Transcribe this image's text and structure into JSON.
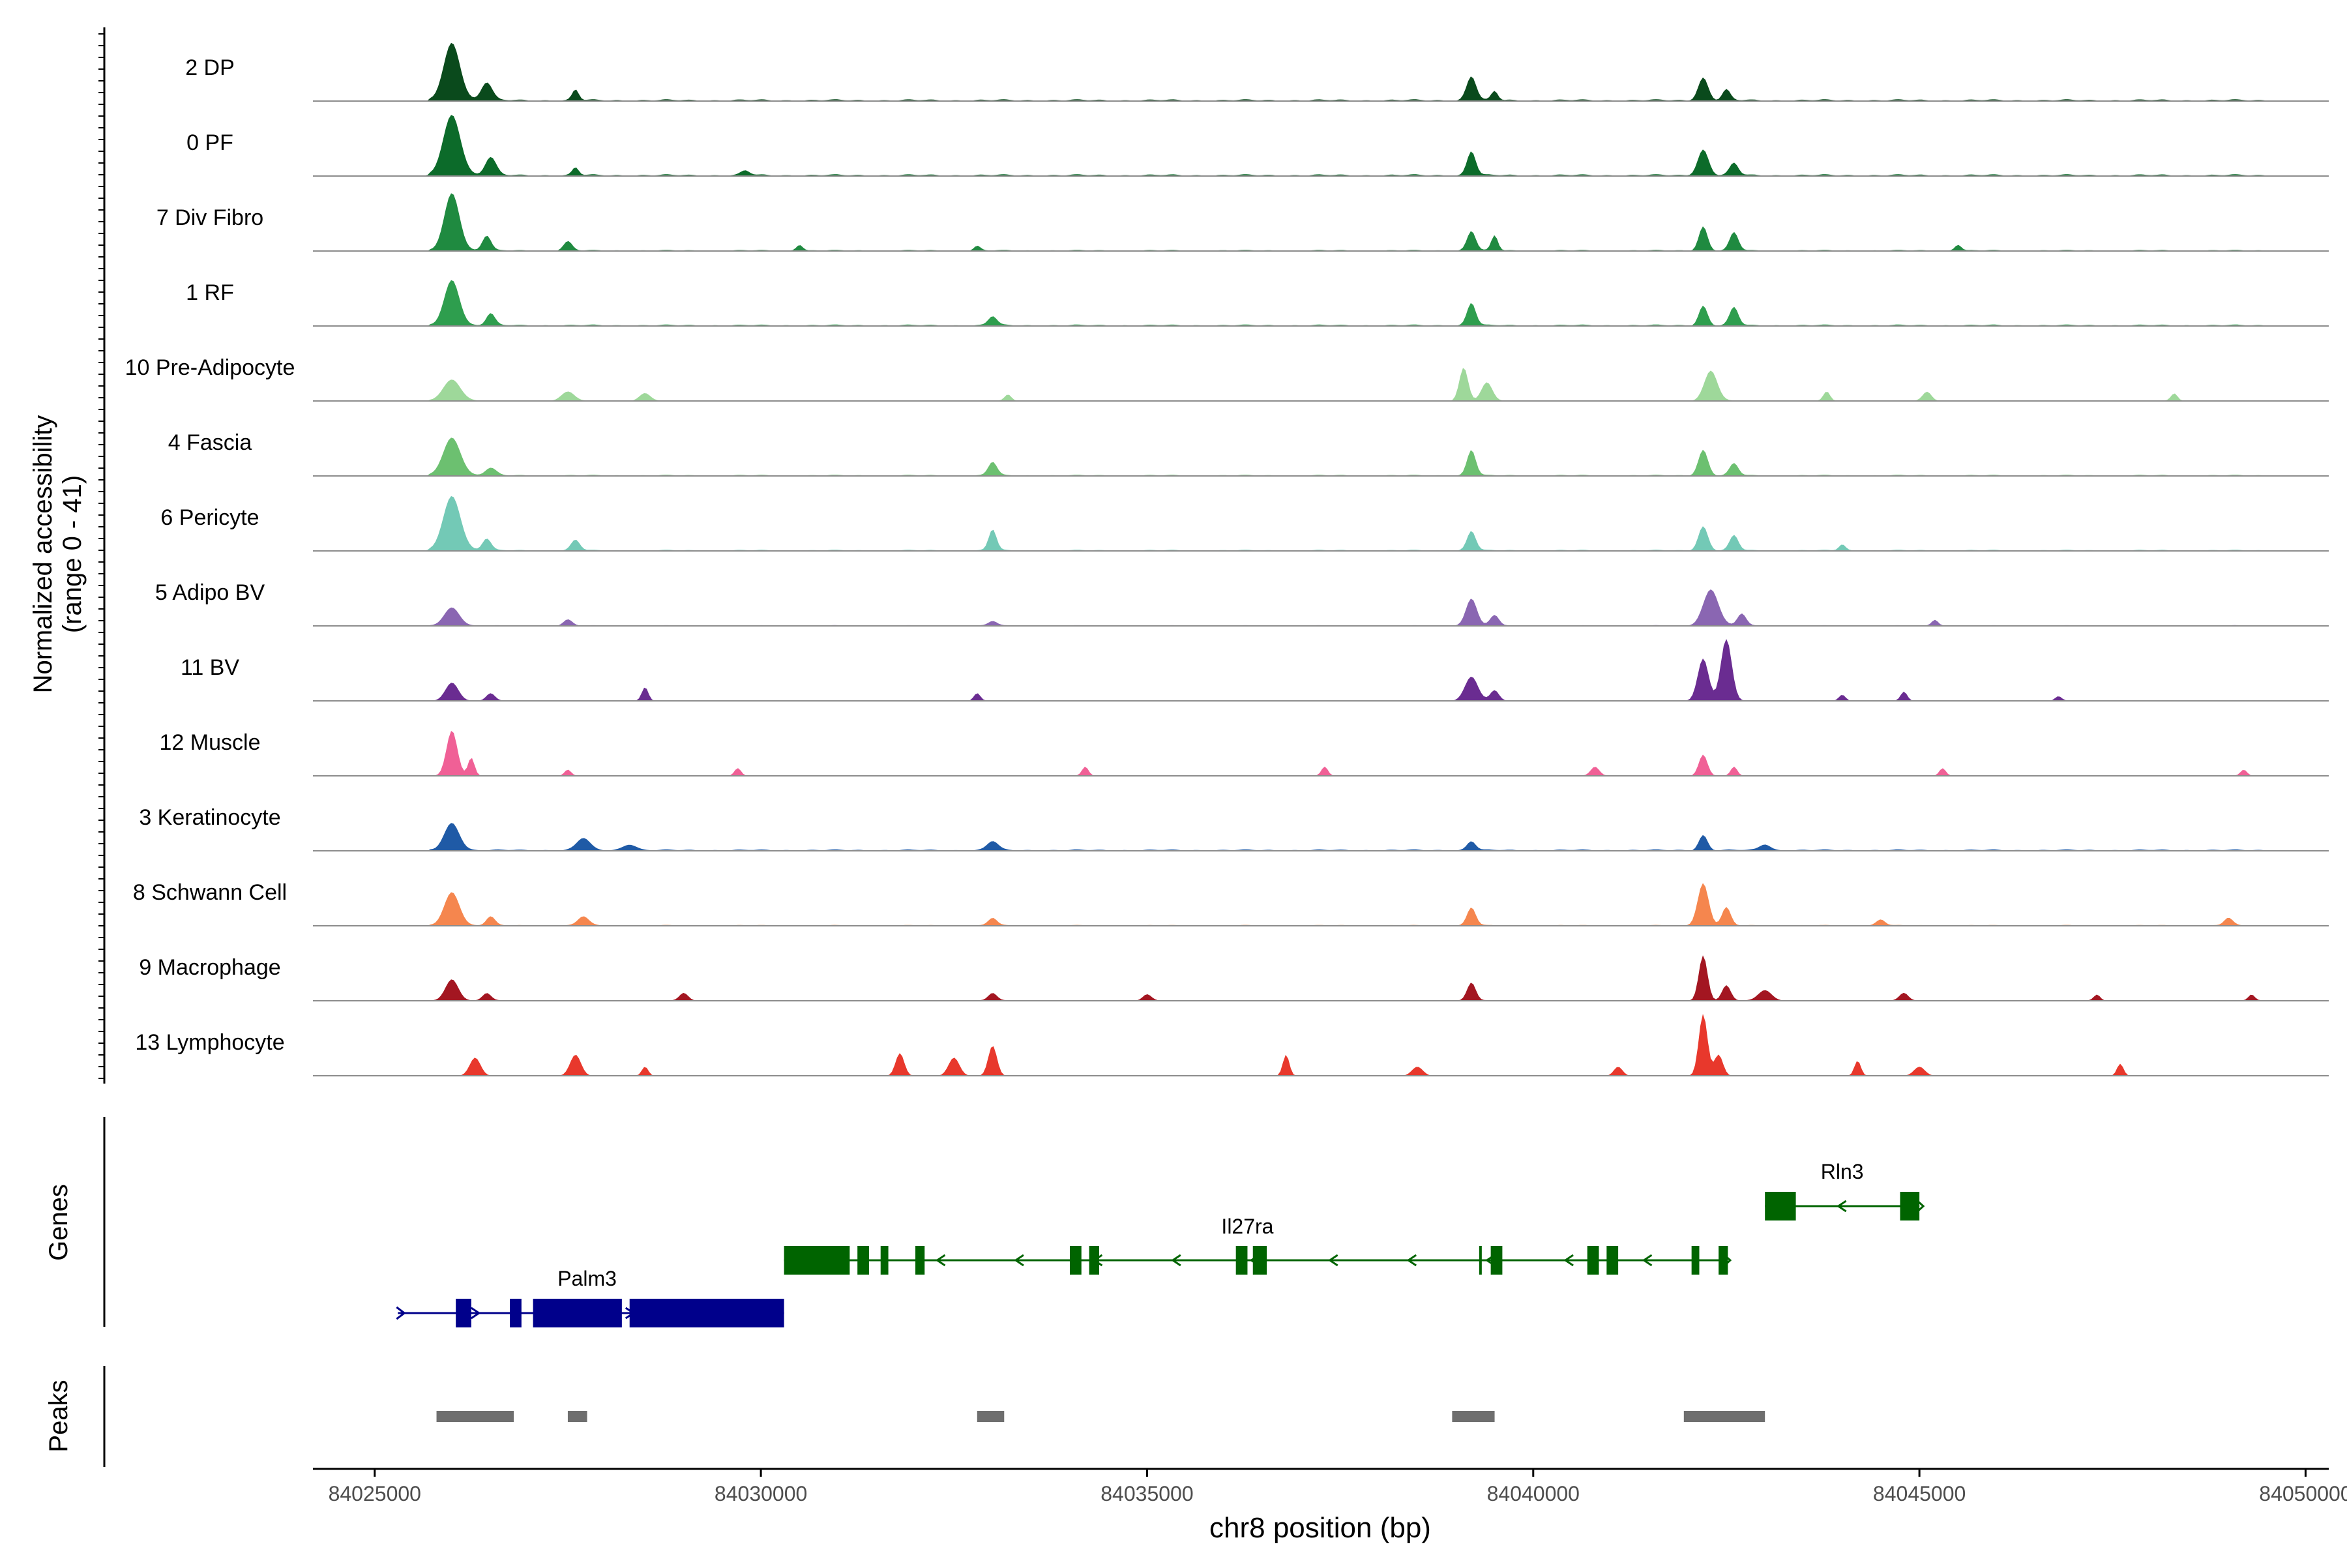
{
  "chart_data": {
    "type": "area",
    "ylabel": [
      "Normalized accessibility",
      "(range 0 - 41)"
    ],
    "xlabel": "chr8 position (bp)",
    "ylim": [
      0,
      41
    ],
    "xlim": [
      84024200,
      84050300
    ],
    "xticks": [
      84025000,
      84030000,
      84035000,
      84040000,
      84045000,
      84050000
    ],
    "xtick_labels": [
      "84025000",
      "84030000",
      "84035000",
      "84040000",
      "84045000",
      "84050000"
    ],
    "tracks": [
      {
        "name": "2 DP",
        "color": "#0a4a1c",
        "peaks": [
          [
            84026000,
            38,
            380
          ],
          [
            84026450,
            12,
            250
          ],
          [
            84027600,
            7,
            150
          ],
          [
            84039200,
            16,
            220
          ],
          [
            84039500,
            6,
            150
          ],
          [
            84042200,
            15,
            230
          ],
          [
            84042500,
            7,
            180
          ]
        ],
        "bg": 1.2
      },
      {
        "name": "0 PF",
        "color": "#0c6b2a",
        "peaks": [
          [
            84026000,
            40,
            400
          ],
          [
            84026500,
            12,
            250
          ],
          [
            84027600,
            5,
            150
          ],
          [
            84029800,
            3,
            200
          ],
          [
            84039200,
            16,
            200
          ],
          [
            84042200,
            17,
            250
          ],
          [
            84042600,
            8,
            200
          ]
        ],
        "bg": 1.2
      },
      {
        "name": "7 Div Fibro",
        "color": "#1f8a40",
        "peaks": [
          [
            84026000,
            38,
            350
          ],
          [
            84026450,
            10,
            200
          ],
          [
            84027500,
            6,
            200
          ],
          [
            84030500,
            4,
            150
          ],
          [
            84032800,
            3,
            150
          ],
          [
            84039200,
            13,
            200
          ],
          [
            84039500,
            10,
            150
          ],
          [
            84042200,
            16,
            200
          ],
          [
            84042600,
            12,
            200
          ],
          [
            84045500,
            4,
            150
          ]
        ],
        "bg": 0.8
      },
      {
        "name": "1 RF",
        "color": "#2e9e4e",
        "peaks": [
          [
            84026000,
            30,
            350
          ],
          [
            84026500,
            8,
            200
          ],
          [
            84033000,
            6,
            200
          ],
          [
            84039200,
            15,
            200
          ],
          [
            84042200,
            13,
            200
          ],
          [
            84042600,
            12,
            200
          ]
        ],
        "bg": 1.0
      },
      {
        "name": "10 Pre-Adipocyte",
        "color": "#9ed89a",
        "peaks": [
          [
            84026000,
            14,
            400
          ],
          [
            84027500,
            6,
            300
          ],
          [
            84028500,
            5,
            250
          ],
          [
            84033200,
            4,
            150
          ],
          [
            84039100,
            22,
            200
          ],
          [
            84039400,
            12,
            250
          ],
          [
            84042300,
            20,
            300
          ],
          [
            84043800,
            6,
            150
          ],
          [
            84045100,
            6,
            200
          ],
          [
            84048300,
            5,
            150
          ]
        ],
        "bg": 0.4
      },
      {
        "name": "4 Fascia",
        "color": "#6cc070",
        "peaks": [
          [
            84026000,
            25,
            400
          ],
          [
            84026500,
            5,
            250
          ],
          [
            84033000,
            9,
            200
          ],
          [
            84039200,
            17,
            200
          ],
          [
            84042200,
            17,
            220
          ],
          [
            84042600,
            8,
            200
          ]
        ],
        "bg": 0.8
      },
      {
        "name": "6 Pericyte",
        "color": "#73c9b6",
        "peaks": [
          [
            84026000,
            36,
            400
          ],
          [
            84026450,
            8,
            200
          ],
          [
            84027600,
            7,
            200
          ],
          [
            84033000,
            14,
            180
          ],
          [
            84039200,
            13,
            200
          ],
          [
            84042200,
            16,
            220
          ],
          [
            84042600,
            10,
            200
          ],
          [
            84044000,
            4,
            150
          ]
        ],
        "bg": 0.8
      },
      {
        "name": "5 Adipo BV",
        "color": "#8a66b2",
        "peaks": [
          [
            84026000,
            12,
            350
          ],
          [
            84027500,
            4,
            200
          ],
          [
            84033000,
            3,
            200
          ],
          [
            84039200,
            18,
            250
          ],
          [
            84039500,
            7,
            200
          ],
          [
            84042300,
            24,
            350
          ],
          [
            84042700,
            8,
            200
          ],
          [
            84045200,
            4,
            150
          ]
        ],
        "bg": 0.5
      },
      {
        "name": "11 BV",
        "color": "#6a2c91",
        "peaks": [
          [
            84026000,
            12,
            300
          ],
          [
            84026500,
            5,
            200
          ],
          [
            84028500,
            9,
            150
          ],
          [
            84032800,
            5,
            150
          ],
          [
            84039200,
            16,
            300
          ],
          [
            84039500,
            7,
            200
          ],
          [
            84042200,
            28,
            250
          ],
          [
            84042500,
            41,
            250
          ],
          [
            84044000,
            4,
            150
          ],
          [
            84044800,
            6,
            150
          ],
          [
            84046800,
            3,
            150
          ]
        ],
        "bg": 0.2
      },
      {
        "name": "12 Muscle",
        "color": "#f06096",
        "peaks": [
          [
            84026000,
            30,
            250
          ],
          [
            84026250,
            12,
            150
          ],
          [
            84027500,
            4,
            150
          ],
          [
            84029700,
            5,
            150
          ],
          [
            84034200,
            6,
            150
          ],
          [
            84037300,
            6,
            150
          ],
          [
            84040800,
            6,
            200
          ],
          [
            84042200,
            14,
            200
          ],
          [
            84042600,
            6,
            150
          ],
          [
            84045300,
            5,
            150
          ],
          [
            84049200,
            4,
            150
          ]
        ],
        "bg": 0.2
      },
      {
        "name": "3 Keratinocyte",
        "color": "#1f5aa6",
        "peaks": [
          [
            84026000,
            18,
            350
          ],
          [
            84027700,
            8,
            300
          ],
          [
            84028300,
            4,
            300
          ],
          [
            84033000,
            6,
            250
          ],
          [
            84039200,
            6,
            200
          ],
          [
            84042200,
            10,
            200
          ],
          [
            84043000,
            4,
            250
          ]
        ],
        "bg": 1.0
      },
      {
        "name": "8 Schwann Cell",
        "color": "#f5864e",
        "peaks": [
          [
            84026000,
            22,
            350
          ],
          [
            84026500,
            6,
            200
          ],
          [
            84027700,
            6,
            250
          ],
          [
            84033000,
            5,
            200
          ],
          [
            84039200,
            12,
            200
          ],
          [
            84042200,
            28,
            250
          ],
          [
            84042500,
            12,
            200
          ],
          [
            84044500,
            4,
            200
          ],
          [
            84049000,
            5,
            200
          ]
        ],
        "bg": 0.6
      },
      {
        "name": "9 Macrophage",
        "color": "#a31621",
        "peaks": [
          [
            84026000,
            14,
            300
          ],
          [
            84026450,
            5,
            200
          ],
          [
            84029000,
            5,
            200
          ],
          [
            84033000,
            5,
            200
          ],
          [
            84035000,
            4,
            200
          ],
          [
            84039200,
            12,
            200
          ],
          [
            84042200,
            30,
            200
          ],
          [
            84042500,
            10,
            200
          ],
          [
            84043000,
            7,
            300
          ],
          [
            84044800,
            5,
            200
          ],
          [
            84047300,
            4,
            150
          ],
          [
            84049300,
            4,
            150
          ]
        ],
        "bg": 0.4
      },
      {
        "name": "13 Lymphocyte",
        "color": "#e8382c",
        "peaks": [
          [
            84026300,
            12,
            250
          ],
          [
            84027600,
            14,
            250
          ],
          [
            84028500,
            6,
            150
          ],
          [
            84031800,
            15,
            200
          ],
          [
            84032500,
            12,
            250
          ],
          [
            84033000,
            20,
            200
          ],
          [
            84036800,
            14,
            150
          ],
          [
            84038500,
            6,
            250
          ],
          [
            84041100,
            6,
            200
          ],
          [
            84042200,
            41,
            200
          ],
          [
            84042400,
            14,
            200
          ],
          [
            84044200,
            10,
            150
          ],
          [
            84045000,
            6,
            250
          ],
          [
            84047600,
            8,
            150
          ]
        ],
        "bg": 0.0
      }
    ],
    "genes_panel": {
      "label": "Genes",
      "genes": [
        {
          "name": "Rln3",
          "strand": "-",
          "color": "#006400",
          "start": 84043000,
          "end": 84045000,
          "exons": [
            [
              84043000,
              84043400
            ],
            [
              84044750,
              84045000
            ]
          ]
        },
        {
          "name": "Il27ra",
          "strand": "-",
          "color": "#006400",
          "start": 84030300,
          "end": 84042500,
          "exons": [
            [
              84030300,
              84031150
            ],
            [
              84031250,
              84031400
            ],
            [
              84031550,
              84031650
            ],
            [
              84032000,
              84032120
            ],
            [
              84034000,
              84034150
            ],
            [
              84034250,
              84034380
            ],
            [
              84036150,
              84036300
            ],
            [
              84036370,
              84036550
            ],
            [
              84039300,
              84039330
            ],
            [
              84039450,
              84039600
            ],
            [
              84040700,
              84040850
            ],
            [
              84040950,
              84041100
            ],
            [
              84042050,
              84042150
            ],
            [
              84042400,
              84042520
            ]
          ]
        },
        {
          "name": "Palm3",
          "strand": "+",
          "color": "#00008b",
          "start": 84025300,
          "end": 84030300,
          "exons": [
            [
              84026050,
              84026250
            ],
            [
              84026750,
              84026900
            ],
            [
              84027050,
              84028200
            ],
            [
              84028300,
              84030300
            ]
          ]
        }
      ]
    },
    "peaks_panel": {
      "label": "Peaks",
      "color": "#6e6e6e",
      "regions": [
        [
          84025800,
          84026800
        ],
        [
          84027500,
          84027750
        ],
        [
          84032800,
          84033150
        ],
        [
          84038950,
          84039500
        ],
        [
          84041950,
          84043000
        ]
      ]
    }
  }
}
